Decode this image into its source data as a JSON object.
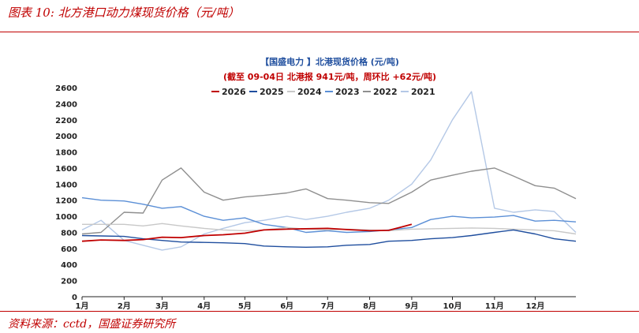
{
  "figure": {
    "title": "图表 10:  北方港口动力煤现货价格（元/吨）",
    "source": "资料来源：cctd，国盛证券研究所"
  },
  "chart_data": {
    "type": "line",
    "title": "【国盛电力    】北港现货价格        (元/吨)",
    "subtitle": "(截至 09-04日  北港报  941元/吨，周环比  +62元/吨)",
    "xlabel": "",
    "ylabel": "",
    "x_ticks": [
      "1月",
      "2月",
      "3月",
      "4月",
      "5月",
      "6月",
      "7月",
      "8月",
      "9月",
      "10月",
      "11月",
      "12月"
    ],
    "x": [
      "1-01",
      "1-15",
      "2-01",
      "2-15",
      "3-01",
      "3-15",
      "4-01",
      "4-15",
      "5-01",
      "5-15",
      "6-01",
      "6-15",
      "7-01",
      "7-15",
      "8-01",
      "8-15",
      "9-01",
      "9-15",
      "10-01",
      "10-15",
      "11-01",
      "11-15",
      "12-01",
      "12-15",
      "12-31"
    ],
    "ylim": [
      0,
      2600
    ],
    "yticks": [
      0,
      200,
      400,
      600,
      800,
      1000,
      1200,
      1400,
      1600,
      1800,
      2000,
      2200,
      2400,
      2600
    ],
    "grid": false,
    "legend_position": "top",
    "series": [
      {
        "name": "2026",
        "color": "#c00000",
        "values": [
          690,
          705,
          700,
          710,
          740,
          735,
          760,
          770,
          790,
          830,
          840,
          845,
          850,
          835,
          820,
          825,
          900,
          null,
          null,
          null,
          null,
          null,
          null,
          null,
          null
        ]
      },
      {
        "name": "2025",
        "color": "#1f4e9e",
        "values": [
          760,
          755,
          750,
          720,
          700,
          680,
          675,
          670,
          660,
          630,
          620,
          615,
          620,
          640,
          650,
          690,
          700,
          720,
          735,
          760,
          800,
          830,
          780,
          720,
          690
        ]
      },
      {
        "name": "2024",
        "color": "#c8c8c8",
        "values": [
          900,
          900,
          900,
          880,
          910,
          880,
          850,
          830,
          820,
          830,
          860,
          840,
          830,
          840,
          830,
          820,
          840,
          845,
          850,
          855,
          850,
          840,
          830,
          820,
          780
        ]
      },
      {
        "name": "2023",
        "color": "#5b8fd6",
        "values": [
          1230,
          1200,
          1190,
          1150,
          1100,
          1120,
          1000,
          950,
          980,
          900,
          860,
          800,
          820,
          800,
          810,
          830,
          860,
          960,
          1000,
          980,
          990,
          1010,
          940,
          950,
          930
        ]
      },
      {
        "name": "2022",
        "color": "#8f8f8f",
        "values": [
          780,
          800,
          1050,
          1040,
          1450,
          1600,
          1300,
          1200,
          1240,
          1260,
          1290,
          1340,
          1220,
          1200,
          1170,
          1160,
          1300,
          1450,
          1510,
          1560,
          1600,
          1500,
          1380,
          1350,
          1220
        ]
      },
      {
        "name": "2021",
        "color": "#b4c8e6",
        "values": [
          830,
          950,
          700,
          640,
          580,
          620,
          780,
          850,
          920,
          950,
          1000,
          960,
          1000,
          1050,
          1100,
          1200,
          1400,
          1700,
          2200,
          2550,
          1100,
          1050,
          1080,
          1060,
          800
        ]
      }
    ]
  }
}
